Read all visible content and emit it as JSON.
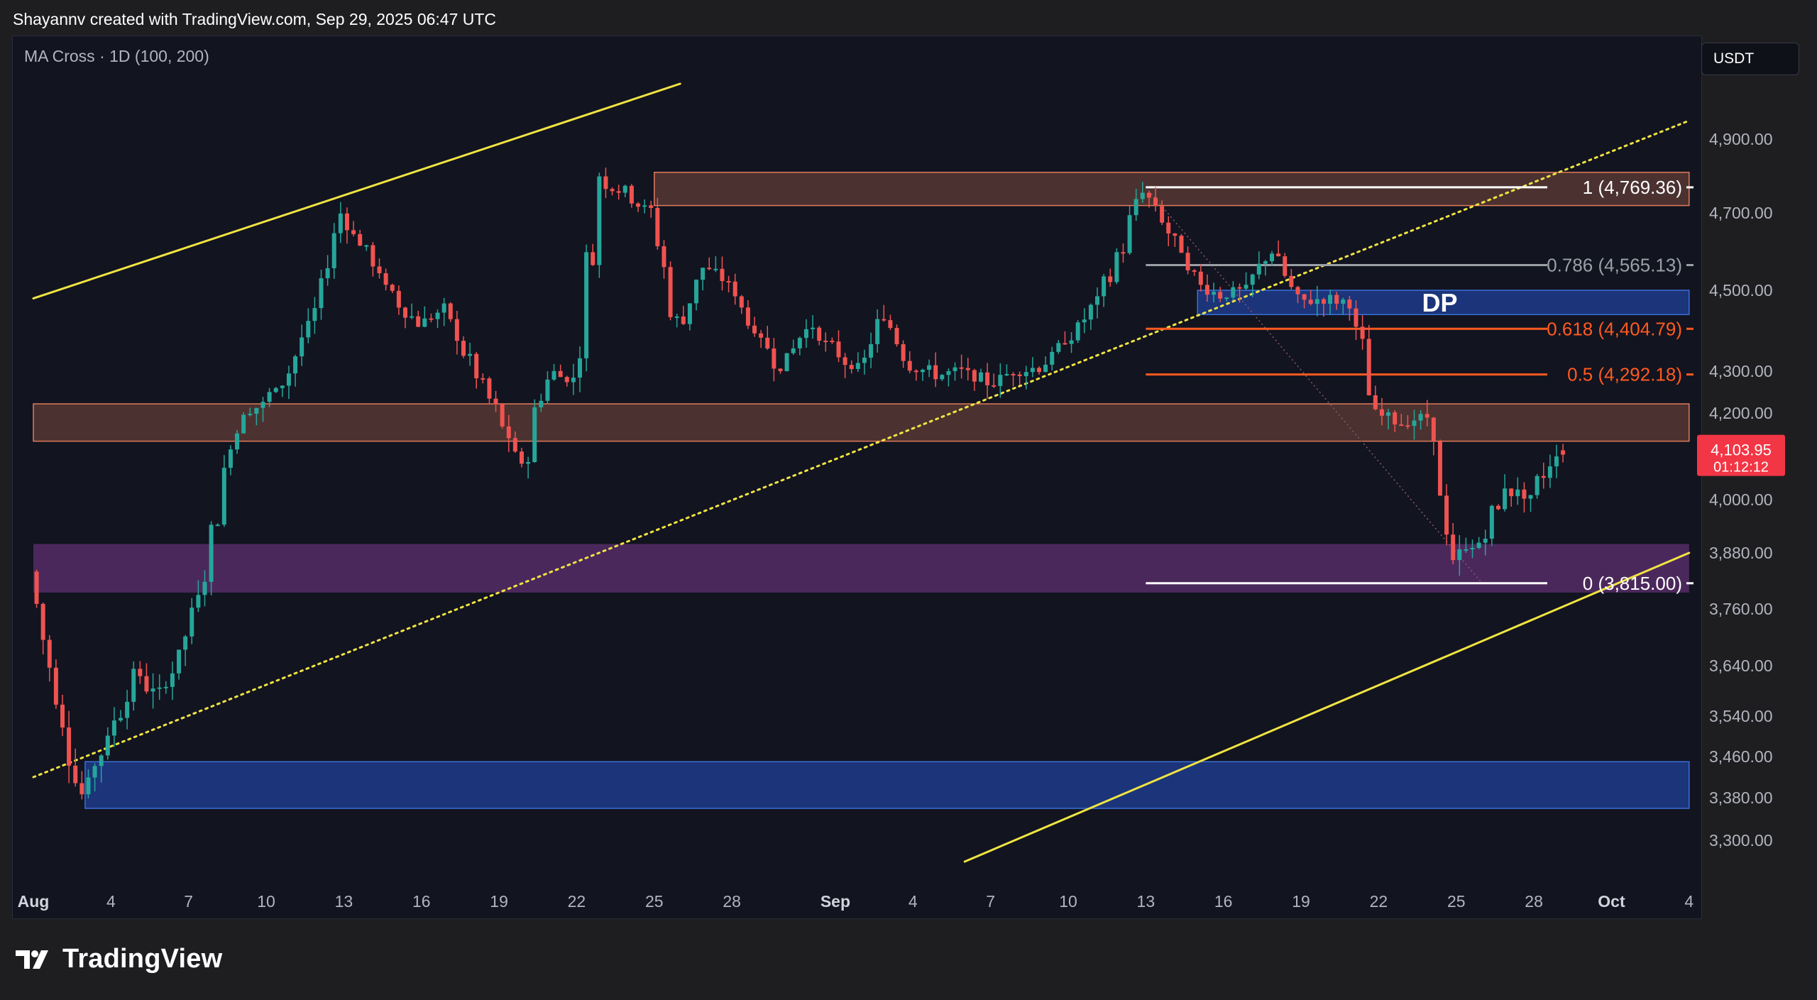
{
  "header": {
    "credit": "Shayannv created with TradingView.com, Sep 29, 2025 06:47 UTC"
  },
  "indicator": {
    "label": "MA Cross · 1D (100, 200)"
  },
  "currency": "USDT",
  "brand": {
    "name": "TradingView",
    "icon": "tradingview-logo-icon"
  },
  "colors": {
    "background": "#121420",
    "up_candle": "#26a69a",
    "down_candle": "#ef5350",
    "channel": "#f0e442",
    "supply_zone": "#5a3a34",
    "demand_zone": "#5a2d6b",
    "dp_zone": "#1e3a8a",
    "fib_main": "#ffffff",
    "fib_786": "#9aa0a6",
    "fib_618": "#ff5a1f",
    "current_price": "#f23645"
  },
  "chart_data": {
    "type": "candlestick",
    "symbol_quote": "USDT",
    "timeframe": "1D",
    "y_axis": {
      "ticks": [
        4900,
        4700,
        4500,
        4300,
        4200,
        4000,
        3880,
        3760,
        3640,
        3540,
        3460,
        3380,
        3300
      ],
      "tick_labels": [
        "4,900.00",
        "4,700.00",
        "4,500.00",
        "4,300.00",
        "4,200.00",
        "4,000.00",
        "3,880.00",
        "3,760.00",
        "3,640.00",
        "3,540.00",
        "3,460.00",
        "3,380.00",
        "3,300.00"
      ]
    },
    "x_axis": {
      "tick_labels": [
        {
          "label": "Aug",
          "date": "2025-08-01",
          "bold": true
        },
        {
          "label": "4",
          "date": "2025-08-04"
        },
        {
          "label": "7",
          "date": "2025-08-07"
        },
        {
          "label": "10",
          "date": "2025-08-10"
        },
        {
          "label": "13",
          "date": "2025-08-13"
        },
        {
          "label": "16",
          "date": "2025-08-16"
        },
        {
          "label": "19",
          "date": "2025-08-19"
        },
        {
          "label": "22",
          "date": "2025-08-22"
        },
        {
          "label": "25",
          "date": "2025-08-25"
        },
        {
          "label": "28",
          "date": "2025-08-28"
        },
        {
          "label": "Sep",
          "date": "2025-09-01",
          "bold": true
        },
        {
          "label": "4",
          "date": "2025-09-04"
        },
        {
          "label": "7",
          "date": "2025-09-07"
        },
        {
          "label": "10",
          "date": "2025-09-10"
        },
        {
          "label": "13",
          "date": "2025-09-13"
        },
        {
          "label": "16",
          "date": "2025-09-16"
        },
        {
          "label": "19",
          "date": "2025-09-19"
        },
        {
          "label": "22",
          "date": "2025-09-22"
        },
        {
          "label": "25",
          "date": "2025-09-25"
        },
        {
          "label": "28",
          "date": "2025-09-28"
        },
        {
          "label": "Oct",
          "date": "2025-10-01",
          "bold": true
        },
        {
          "label": "4",
          "date": "2025-10-04"
        }
      ]
    },
    "price_path": [
      {
        "date": "2025-08-01",
        "price": 3840
      },
      {
        "date": "2025-08-02",
        "price": 3560
      },
      {
        "date": "2025-08-03",
        "price": 3390
      },
      {
        "date": "2025-08-04",
        "price": 3500
      },
      {
        "date": "2025-08-05",
        "price": 3620
      },
      {
        "date": "2025-08-06",
        "price": 3580
      },
      {
        "date": "2025-08-07",
        "price": 3700
      },
      {
        "date": "2025-08-08",
        "price": 3920
      },
      {
        "date": "2025-08-09",
        "price": 4200
      },
      {
        "date": "2025-08-10",
        "price": 4220
      },
      {
        "date": "2025-08-11",
        "price": 4300
      },
      {
        "date": "2025-08-12",
        "price": 4450
      },
      {
        "date": "2025-08-13",
        "price": 4700
      },
      {
        "date": "2025-08-14",
        "price": 4600
      },
      {
        "date": "2025-08-15",
        "price": 4480
      },
      {
        "date": "2025-08-16",
        "price": 4420
      },
      {
        "date": "2025-08-17",
        "price": 4450
      },
      {
        "date": "2025-08-18",
        "price": 4320
      },
      {
        "date": "2025-08-19",
        "price": 4200
      },
      {
        "date": "2025-08-20",
        "price": 4070
      },
      {
        "date": "2025-08-21",
        "price": 4300
      },
      {
        "date": "2025-08-22",
        "price": 4280
      },
      {
        "date": "2025-08-23",
        "price": 4780
      },
      {
        "date": "2025-08-24",
        "price": 4760
      },
      {
        "date": "2025-08-25",
        "price": 4700
      },
      {
        "date": "2025-08-26",
        "price": 4400
      },
      {
        "date": "2025-08-27",
        "price": 4560
      },
      {
        "date": "2025-08-28",
        "price": 4520
      },
      {
        "date": "2025-08-29",
        "price": 4400
      },
      {
        "date": "2025-08-30",
        "price": 4310
      },
      {
        "date": "2025-08-31",
        "price": 4420
      },
      {
        "date": "2025-09-01",
        "price": 4350
      },
      {
        "date": "2025-09-02",
        "price": 4300
      },
      {
        "date": "2025-09-03",
        "price": 4440
      },
      {
        "date": "2025-09-04",
        "price": 4320
      },
      {
        "date": "2025-09-05",
        "price": 4290
      },
      {
        "date": "2025-09-06",
        "price": 4300
      },
      {
        "date": "2025-09-07",
        "price": 4270
      },
      {
        "date": "2025-09-08",
        "price": 4300
      },
      {
        "date": "2025-09-09",
        "price": 4310
      },
      {
        "date": "2025-09-10",
        "price": 4370
      },
      {
        "date": "2025-09-11",
        "price": 4450
      },
      {
        "date": "2025-09-12",
        "price": 4580
      },
      {
        "date": "2025-09-13",
        "price": 4760
      },
      {
        "date": "2025-09-14",
        "price": 4650
      },
      {
        "date": "2025-09-15",
        "price": 4520
      },
      {
        "date": "2025-09-16",
        "price": 4490
      },
      {
        "date": "2025-09-17",
        "price": 4500
      },
      {
        "date": "2025-09-18",
        "price": 4610
      },
      {
        "date": "2025-09-19",
        "price": 4470
      },
      {
        "date": "2025-09-20",
        "price": 4480
      },
      {
        "date": "2025-09-21",
        "price": 4470
      },
      {
        "date": "2025-09-22",
        "price": 4200
      },
      {
        "date": "2025-09-23",
        "price": 4180
      },
      {
        "date": "2025-09-24",
        "price": 4190
      },
      {
        "date": "2025-09-25",
        "price": 3870
      },
      {
        "date": "2025-09-26",
        "price": 3900
      },
      {
        "date": "2025-09-27",
        "price": 4020
      },
      {
        "date": "2025-09-28",
        "price": 4010
      },
      {
        "date": "2025-09-29",
        "price": 4104
      }
    ],
    "channel_lines": [
      {
        "name": "upper",
        "style": "solid",
        "points": [
          {
            "date": "2025-08-01",
            "price": 4480
          },
          {
            "date": "2025-08-26",
            "price": 5050
          }
        ]
      },
      {
        "name": "middle",
        "style": "dotted",
        "points": [
          {
            "date": "2025-08-01",
            "price": 3420
          },
          {
            "date": "2025-10-04",
            "price": 4950
          }
        ]
      },
      {
        "name": "lower",
        "style": "solid",
        "points": [
          {
            "date": "2025-09-06",
            "price": 3260
          },
          {
            "date": "2025-10-04",
            "price": 3880
          }
        ]
      }
    ],
    "zones": [
      {
        "name": "supply-upper",
        "from_date": "2025-08-25",
        "to_date": "2025-10-04",
        "top": 4810,
        "bottom": 4720,
        "color": "#5a3a34"
      },
      {
        "name": "supply-mid",
        "from_date": "2025-08-01",
        "to_date": "2025-10-04",
        "top": 4222,
        "bottom": 4135,
        "color": "#5a3a34"
      },
      {
        "name": "demand",
        "from_date": "2025-08-01",
        "to_date": "2025-10-04",
        "top": 3900,
        "bottom": 3795,
        "color": "#5a2d6b"
      },
      {
        "name": "support",
        "from_date": "2025-08-03",
        "to_date": "2025-10-04",
        "top": 3450,
        "bottom": 3360,
        "color": "#1e3a8a"
      },
      {
        "name": "dp",
        "label": "DP",
        "from_date": "2025-09-15",
        "to_date": "2025-10-04",
        "top": 4500,
        "bottom": 4440,
        "color": "#1e3a8a"
      }
    ],
    "fib_levels": [
      {
        "ratio": "1",
        "price": 4769.36,
        "label": "1 (4,769.36)",
        "color": "#ffffff"
      },
      {
        "ratio": "0.786",
        "price": 4565.13,
        "label": "0.786 (4,565.13)",
        "color": "#9aa0a6"
      },
      {
        "ratio": "0.618",
        "price": 4404.79,
        "label": "0.618 (4,404.79)",
        "color": "#ff5a1f"
      },
      {
        "ratio": "0.5",
        "price": 4292.18,
        "label": "0.5 (4,292.18)",
        "color": "#ff5a1f"
      },
      {
        "ratio": "0",
        "price": 3815.0,
        "label": "0 (3,815.00)",
        "color": "#ffffff"
      }
    ],
    "fib_range": {
      "from_date": "2025-09-13",
      "to_date": "2025-09-29"
    },
    "current_price": {
      "value": 4103.95,
      "label": "4,103.95",
      "countdown": "01:12:12"
    }
  }
}
